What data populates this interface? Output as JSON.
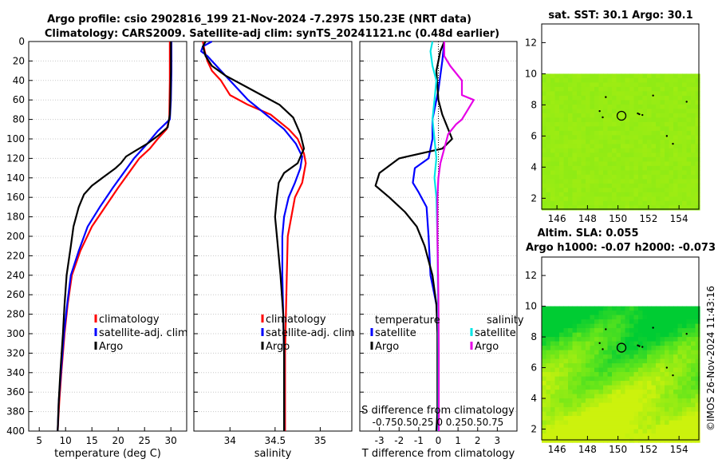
{
  "title_line1": "Argo profile: csio 2902816_199 21-Nov-2024 -7.297S 150.23E (NRT data)",
  "title_line2": "Climatology: CARS2009. Satellite-adj clim: synTS_20241121.nc (0.48d earlier)",
  "colors": {
    "climatology": "#ff0000",
    "satellite_adj": "#0000ff",
    "argo": "#000000",
    "salinity_satellite": "#00e6e6",
    "salinity_argo": "#e600e6",
    "map_dark": "#00cc33",
    "map_mid": "#66e61a",
    "map_light": "#ccf20d",
    "map_nodata": "#ffffff"
  },
  "chart_data": [
    {
      "id": "temperature",
      "type": "line",
      "xlabel": "temperature (deg C)",
      "ylabel": "depth",
      "xlim": [
        3,
        33
      ],
      "ylim": [
        400,
        0
      ],
      "xticks": [
        5,
        10,
        15,
        20,
        25,
        30
      ],
      "yticks": [
        0,
        20,
        40,
        60,
        80,
        100,
        120,
        140,
        160,
        180,
        200,
        220,
        240,
        260,
        280,
        300,
        320,
        340,
        360,
        380,
        400
      ],
      "grid": true,
      "legend": [
        "climatology",
        "satellite-adj. clim",
        "Argo"
      ],
      "legend_position": "lower-right",
      "series": [
        {
          "name": "climatology",
          "color_key": "climatology",
          "points": [
            [
              29.8,
              0
            ],
            [
              29.8,
              40
            ],
            [
              29.7,
              80
            ],
            [
              29.2,
              90
            ],
            [
              27.5,
              100
            ],
            [
              26.0,
              110
            ],
            [
              24.0,
              120
            ],
            [
              22.0,
              135
            ],
            [
              20.0,
              150
            ],
            [
              17.5,
              170
            ],
            [
              15.0,
              190
            ],
            [
              12.8,
              215
            ],
            [
              11.2,
              240
            ],
            [
              10.4,
              270
            ],
            [
              9.8,
              300
            ],
            [
              9.2,
              340
            ],
            [
              8.8,
              370
            ],
            [
              8.5,
              400
            ]
          ]
        },
        {
          "name": "satellite-adj. clim",
          "color_key": "satellite_adj",
          "points": [
            [
              30.1,
              0
            ],
            [
              30.1,
              30
            ],
            [
              30.0,
              60
            ],
            [
              29.8,
              80
            ],
            [
              27.5,
              92
            ],
            [
              25.5,
              105
            ],
            [
              23.0,
              120
            ],
            [
              21.0,
              135
            ],
            [
              19.0,
              150
            ],
            [
              16.5,
              170
            ],
            [
              14.2,
              190
            ],
            [
              12.5,
              215
            ],
            [
              11.0,
              240
            ],
            [
              10.3,
              270
            ],
            [
              9.7,
              300
            ],
            [
              9.1,
              340
            ],
            [
              8.7,
              370
            ],
            [
              8.5,
              400
            ]
          ]
        },
        {
          "name": "Argo",
          "color_key": "argo",
          "points": [
            [
              30.0,
              0
            ],
            [
              30.0,
              30
            ],
            [
              29.9,
              60
            ],
            [
              29.8,
              75
            ],
            [
              29.4,
              88
            ],
            [
              27.5,
              97
            ],
            [
              25.5,
              105
            ],
            [
              23.0,
              113
            ],
            [
              21.5,
              118
            ],
            [
              20.5,
              125
            ],
            [
              19.5,
              130
            ],
            [
              17.0,
              140
            ],
            [
              15.0,
              148
            ],
            [
              13.5,
              157
            ],
            [
              12.5,
              170
            ],
            [
              11.5,
              190
            ],
            [
              11.0,
              210
            ],
            [
              10.2,
              240
            ],
            [
              9.8,
              270
            ],
            [
              9.5,
              300
            ],
            [
              9.0,
              340
            ],
            [
              8.7,
              370
            ],
            [
              8.5,
              400
            ]
          ]
        }
      ]
    },
    {
      "id": "salinity",
      "type": "line",
      "xlabel": "salinity",
      "ylabel": "depth",
      "xlim": [
        33.6,
        35.35
      ],
      "ylim": [
        400,
        0
      ],
      "xticks": [
        34,
        34.5,
        35
      ],
      "yticks": [
        0,
        20,
        40,
        60,
        80,
        100,
        120,
        140,
        160,
        180,
        200,
        220,
        240,
        260,
        280,
        300,
        320,
        340,
        360,
        380,
        400
      ],
      "grid": true,
      "legend": [
        "climatology",
        "satellite-adj. clim",
        "Argo"
      ],
      "legend_position": "lower-right",
      "series": [
        {
          "name": "climatology",
          "color_key": "climatology",
          "points": [
            [
              33.7,
              0
            ],
            [
              33.72,
              10
            ],
            [
              33.75,
              20
            ],
            [
              33.8,
              30
            ],
            [
              33.9,
              40
            ],
            [
              34.0,
              55
            ],
            [
              34.2,
              65
            ],
            [
              34.45,
              75
            ],
            [
              34.65,
              90
            ],
            [
              34.75,
              100
            ],
            [
              34.82,
              115
            ],
            [
              34.84,
              125
            ],
            [
              34.8,
              145
            ],
            [
              34.72,
              160
            ],
            [
              34.68,
              180
            ],
            [
              34.64,
              200
            ],
            [
              34.63,
              240
            ],
            [
              34.62,
              280
            ],
            [
              34.61,
              320
            ],
            [
              34.61,
              360
            ],
            [
              34.61,
              400
            ]
          ]
        },
        {
          "name": "satellite-adj. clim",
          "color_key": "satellite_adj",
          "points": [
            [
              33.8,
              0
            ],
            [
              33.7,
              5
            ],
            [
              33.68,
              10
            ],
            [
              33.75,
              15
            ],
            [
              33.9,
              30
            ],
            [
              34.05,
              45
            ],
            [
              34.2,
              60
            ],
            [
              34.4,
              75
            ],
            [
              34.6,
              90
            ],
            [
              34.73,
              105
            ],
            [
              34.8,
              118
            ],
            [
              34.78,
              130
            ],
            [
              34.72,
              145
            ],
            [
              34.65,
              160
            ],
            [
              34.6,
              180
            ],
            [
              34.58,
              200
            ],
            [
              34.58,
              240
            ],
            [
              34.59,
              280
            ],
            [
              34.6,
              320
            ],
            [
              34.6,
              360
            ],
            [
              34.6,
              400
            ]
          ]
        },
        {
          "name": "Argo",
          "color_key": "argo",
          "points": [
            [
              33.73,
              0
            ],
            [
              33.7,
              5
            ],
            [
              33.73,
              15
            ],
            [
              33.8,
              25
            ],
            [
              33.95,
              35
            ],
            [
              34.15,
              45
            ],
            [
              34.35,
              55
            ],
            [
              34.55,
              65
            ],
            [
              34.7,
              78
            ],
            [
              34.78,
              95
            ],
            [
              34.82,
              110
            ],
            [
              34.75,
              125
            ],
            [
              34.6,
              135
            ],
            [
              34.54,
              145
            ],
            [
              34.52,
              160
            ],
            [
              34.5,
              180
            ],
            [
              34.52,
              200
            ],
            [
              34.56,
              240
            ],
            [
              34.59,
              280
            ],
            [
              34.6,
              320
            ],
            [
              34.6,
              360
            ],
            [
              34.6,
              400
            ]
          ]
        }
      ]
    },
    {
      "id": "differences",
      "type": "line",
      "xlabel": "T difference from climatology",
      "ylabel": "depth",
      "xlim": [
        -4,
        4
      ],
      "ylim": [
        400,
        0
      ],
      "xticks": [
        -3,
        -2,
        -1,
        0,
        1,
        2,
        3
      ],
      "s_xticks_labels": "-0.750.50.25 0  0.250.50.75",
      "s_axis_label": "S difference from climatology",
      "yticks": [
        0,
        20,
        40,
        60,
        80,
        100,
        120,
        140,
        160,
        180,
        200,
        220,
        240,
        260,
        280,
        300,
        320,
        340,
        360,
        380,
        400
      ],
      "grid": true,
      "legend_temperature_header": "temperature",
      "legend_salinity_header": "salinity",
      "legend": [
        "satellite",
        "Argo",
        "satellite",
        "Argo"
      ],
      "series": [
        {
          "name": "temperature satellite",
          "color_key": "satellite_adj",
          "points": [
            [
              0.3,
              0
            ],
            [
              0.2,
              20
            ],
            [
              0.0,
              50
            ],
            [
              -0.3,
              80
            ],
            [
              -0.3,
              100
            ],
            [
              -0.5,
              120
            ],
            [
              -1.2,
              130
            ],
            [
              -1.3,
              145
            ],
            [
              -1.0,
              155
            ],
            [
              -0.6,
              170
            ],
            [
              -0.5,
              200
            ],
            [
              -0.4,
              240
            ],
            [
              -0.1,
              270
            ],
            [
              0.0,
              300
            ],
            [
              0.0,
              360
            ],
            [
              0.0,
              400
            ]
          ]
        },
        {
          "name": "temperature Argo",
          "color_key": "argo",
          "points": [
            [
              0.3,
              0
            ],
            [
              0.1,
              10
            ],
            [
              -0.1,
              30
            ],
            [
              0.0,
              60
            ],
            [
              0.2,
              75
            ],
            [
              0.5,
              90
            ],
            [
              0.7,
              100
            ],
            [
              0.2,
              110
            ],
            [
              -2.0,
              120
            ],
            [
              -3.0,
              135
            ],
            [
              -3.2,
              148
            ],
            [
              -2.5,
              160
            ],
            [
              -1.7,
              175
            ],
            [
              -1.1,
              190
            ],
            [
              -0.7,
              210
            ],
            [
              -0.3,
              240
            ],
            [
              -0.1,
              270
            ],
            [
              -0.05,
              300
            ],
            [
              -0.05,
              340
            ],
            [
              -0.05,
              380
            ],
            [
              -0.1,
              400
            ]
          ]
        },
        {
          "name": "salinity satellite",
          "color_key": "salinity_satellite",
          "points": [
            [
              -0.3,
              0
            ],
            [
              -0.4,
              10
            ],
            [
              -0.3,
              25
            ],
            [
              -0.1,
              40
            ],
            [
              -0.2,
              60
            ],
            [
              -0.3,
              80
            ],
            [
              -0.2,
              100
            ],
            [
              -0.1,
              120
            ],
            [
              -0.2,
              140
            ],
            [
              -0.1,
              160
            ],
            [
              -0.05,
              200
            ],
            [
              -0.02,
              260
            ],
            [
              0.0,
              320
            ],
            [
              0.0,
              400
            ]
          ]
        },
        {
          "name": "salinity Argo",
          "color_key": "salinity_argo",
          "points": [
            [
              0.3,
              0
            ],
            [
              0.3,
              15
            ],
            [
              0.6,
              25
            ],
            [
              1.2,
              40
            ],
            [
              1.2,
              55
            ],
            [
              1.8,
              60
            ],
            [
              1.5,
              70
            ],
            [
              1.2,
              80
            ],
            [
              0.9,
              85
            ],
            [
              0.5,
              95
            ],
            [
              0.3,
              110
            ],
            [
              0.1,
              125
            ],
            [
              0.0,
              140
            ],
            [
              -0.05,
              160
            ],
            [
              -0.05,
              200
            ],
            [
              0.0,
              260
            ],
            [
              0.02,
              320
            ],
            [
              0.02,
              400
            ]
          ]
        }
      ]
    },
    {
      "id": "sst_map",
      "type": "heatmap",
      "title": "sat. SST: 30.1 Argo: 30.1",
      "xticks": [
        146,
        148,
        150,
        152,
        154
      ],
      "yticks": [
        2,
        4,
        6,
        8,
        10,
        12
      ],
      "xlim": [
        145,
        155.3
      ],
      "ylim": [
        1.3,
        13.2
      ],
      "nodata_above_lat": 10,
      "profile_marker": {
        "lon": 150.23,
        "lat": 7.3
      }
    },
    {
      "id": "sla_map",
      "type": "heatmap",
      "title_line1": "Altim. SLA: 0.055",
      "title_line2": "Argo h1000: -0.07 h2000: -0.073",
      "xticks": [
        146,
        148,
        150,
        152,
        154
      ],
      "yticks": [
        2,
        4,
        6,
        8,
        10,
        12
      ],
      "xlim": [
        145,
        155.3
      ],
      "ylim": [
        1.3,
        13.2
      ],
      "nodata_above_lat": 10,
      "profile_marker": {
        "lon": 150.23,
        "lat": 7.3
      }
    }
  ],
  "footer_stamp": "©IMOS 26-Nov-2024 11:43:16"
}
